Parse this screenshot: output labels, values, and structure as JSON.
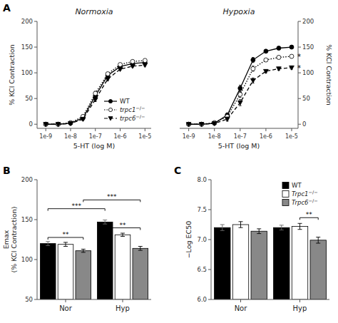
{
  "chart_data": [
    {
      "type": "line",
      "title": "Normoxia",
      "xlabel": "5-HT (log M)",
      "ylabel": "% KCl Contraction",
      "x": [
        -9,
        -8.5,
        -8,
        -7.5,
        -7,
        -6.5,
        -6,
        -5.5,
        -5
      ],
      "series": [
        {
          "name": "WT",
          "color": "#000000",
          "marker": "circle",
          "line_style": "solid",
          "values": [
            0,
            0,
            2,
            12,
            55,
            95,
            112,
            118,
            120
          ],
          "errors": [
            0.3,
            0.3,
            1,
            3,
            4,
            3,
            2,
            2,
            2
          ]
        },
        {
          "name": "trpc1−/−",
          "color": "#000000",
          "marker": "circle-open",
          "line_style": "dotted",
          "values": [
            0,
            0,
            3,
            15,
            60,
            98,
            116,
            122,
            124
          ],
          "errors": [
            0.3,
            0.3,
            1,
            3,
            4,
            3,
            2,
            2,
            2
          ]
        },
        {
          "name": "trpc6−/−",
          "color": "#000000",
          "marker": "triangle-down",
          "line_style": "dashed",
          "values": [
            0,
            0,
            1.5,
            10,
            48,
            88,
            107,
            113,
            115
          ],
          "errors": [
            0.3,
            0.3,
            1,
            3,
            4,
            3,
            2,
            2,
            2
          ]
        }
      ],
      "xlim": [
        -9.35,
        -4.75
      ],
      "xticks": [
        {
          "value": -9,
          "label": "1e-9"
        },
        {
          "value": -8,
          "label": "1e-8"
        },
        {
          "value": -7,
          "label": "1e-7"
        },
        {
          "value": -6,
          "label": "1e-6"
        },
        {
          "value": -5,
          "label": "1e-5"
        }
      ],
      "ylim": [
        -8,
        200
      ],
      "yticks": [
        0,
        50,
        100,
        150,
        200
      ],
      "grid": false,
      "legend": "lower right",
      "annotations": [
        {
          "text": "A"
        }
      ]
    },
    {
      "type": "line",
      "title": "Hypoxia",
      "xlabel": "5-HT (log M)",
      "ylabel": "% KCl Contraction",
      "x": [
        -9,
        -8.5,
        -8,
        -7.5,
        -7,
        -6.5,
        -6,
        -5.5,
        -5
      ],
      "series": [
        {
          "color": "#000000",
          "marker": "circle",
          "line_style": "solid",
          "values": [
            0,
            0,
            2,
            18,
            70,
            125,
            142,
            148,
            150
          ],
          "errors": [
            0.3,
            0.5,
            1.5,
            4,
            6,
            5,
            3,
            3,
            3
          ]
        },
        {
          "color": "#000000",
          "marker": "circle-open",
          "line_style": "dotted",
          "values": [
            0,
            0,
            3,
            15,
            58,
            108,
            125,
            130,
            132
          ],
          "errors": [
            0.3,
            0.5,
            1.5,
            4,
            6,
            5,
            3,
            3,
            3
          ]
        },
        {
          "color": "#000000",
          "marker": "triangle-down",
          "line_style": "dashed",
          "values": [
            0,
            0,
            1.5,
            10,
            42,
            85,
            103,
            108,
            110
          ],
          "errors": [
            0.3,
            0.5,
            1.5,
            4,
            6,
            5,
            3,
            3,
            3
          ]
        }
      ],
      "xlim": [
        -9.35,
        -4.75
      ],
      "xticks": [
        {
          "value": -9,
          "label": "1e-9"
        },
        {
          "value": -8,
          "label": "1e-8"
        },
        {
          "value": -7,
          "label": "1e-7"
        },
        {
          "value": -6,
          "label": "1e-6"
        },
        {
          "value": -5,
          "label": "1e-5"
        }
      ],
      "ylim": [
        -8,
        200
      ],
      "yticks": [
        0,
        50,
        100,
        150,
        200
      ],
      "grid": false,
      "annotations": [
        {
          "text": "*",
          "x": -4.78,
          "y": 132
        },
        {
          "text": "*",
          "x": -4.78,
          "y": 110
        }
      ]
    },
    {
      "type": "bar",
      "ylabel": [
        "Emax",
        "(% KCl Contraction)"
      ],
      "categories": [
        "Nor",
        "Hyp"
      ],
      "series": [
        {
          "color": "#000000",
          "values": [
            120,
            147
          ],
          "errors": [
            2.5,
            2.5
          ]
        },
        {
          "color": "#ffffff",
          "values": [
            119,
            131
          ],
          "errors": [
            2.5,
            2
          ]
        },
        {
          "color": "#888888",
          "values": [
            111,
            114
          ],
          "errors": [
            2,
            2.5
          ]
        }
      ],
      "ylim": [
        50,
        200
      ],
      "yticks": [
        50,
        100,
        150,
        200
      ],
      "grid": false,
      "annotations": [
        {
          "text": "B"
        },
        {
          "text": "**",
          "y": 125,
          "between": [
            [
              0,
              0
            ],
            [
              0,
              2
            ]
          ]
        },
        {
          "text": "***",
          "y": 161,
          "between": [
            [
              0,
              0
            ],
            [
              1,
              0
            ]
          ]
        },
        {
          "text": "***",
          "y": 172,
          "between": [
            [
              0,
              2
            ],
            [
              1,
              2
            ]
          ]
        },
        {
          "text": "**",
          "y": 137,
          "between": [
            [
              1,
              0
            ],
            [
              1,
              2
            ]
          ]
        }
      ]
    },
    {
      "type": "bar",
      "ylabel": "−Log EC50",
      "categories": [
        "Nor",
        "Hyp"
      ],
      "series": [
        {
          "name": "WT",
          "color": "#000000",
          "values": [
            7.2,
            7.2
          ],
          "errors": [
            0.05,
            0.04
          ]
        },
        {
          "name": "Trpc1−/−",
          "color": "#ffffff",
          "values": [
            7.25,
            7.22
          ],
          "errors": [
            0.05,
            0.05
          ]
        },
        {
          "name": "Trpc6−/−",
          "color": "#888888",
          "values": [
            7.14,
            6.99
          ],
          "errors": [
            0.04,
            0.05
          ]
        }
      ],
      "ylim": [
        6.0,
        8.0
      ],
      "yticks": [
        {
          "value": 6.0,
          "label": "6.0"
        },
        6.5,
        {
          "value": 7.0,
          "label": "7.0"
        },
        7.5,
        {
          "value": 8.0,
          "label": "8.0"
        }
      ],
      "grid": false,
      "legend": "upper right",
      "annotations": [
        {
          "text": "C"
        },
        {
          "text": "**",
          "y": 7.33,
          "between": [
            [
              1,
              1
            ],
            [
              1,
              2
            ]
          ]
        }
      ]
    }
  ]
}
